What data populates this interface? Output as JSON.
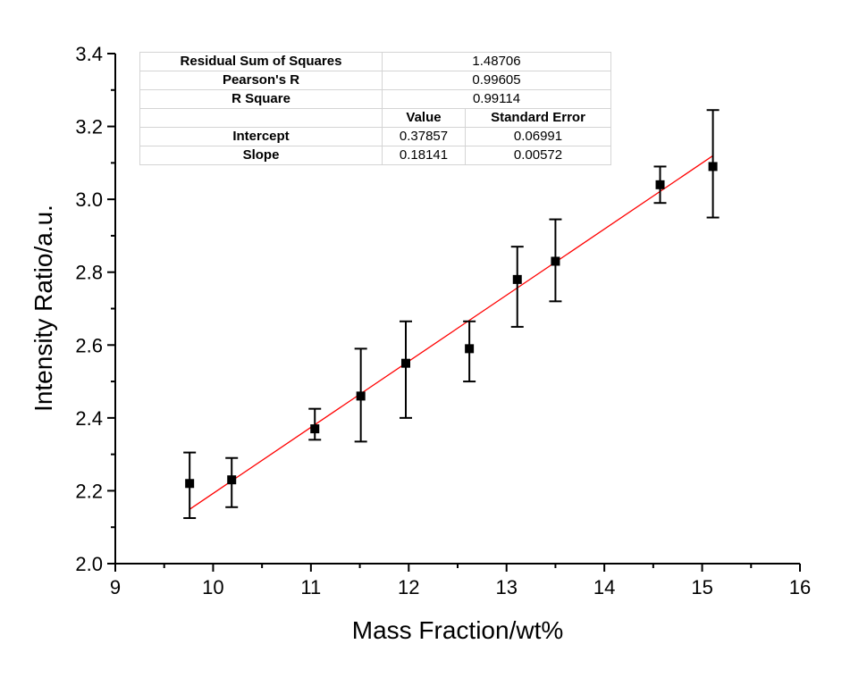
{
  "chart_data": {
    "type": "scatter",
    "title": "",
    "xlabel": "Mass Fraction/wt%",
    "ylabel": "Intensity Ratio/a.u.",
    "xlim": [
      9,
      16
    ],
    "ylim": [
      2.0,
      3.4
    ],
    "xticks": [
      "9",
      "10",
      "11",
      "12",
      "13",
      "14",
      "15",
      "16"
    ],
    "yticks": [
      "2.0",
      "2.2",
      "2.4",
      "2.6",
      "2.8",
      "3.0",
      "3.2",
      "3.4"
    ],
    "colors": {
      "points": "#000000",
      "fit_line": "#ff0000",
      "axis": "#000000"
    },
    "series": [
      {
        "name": "data",
        "x": [
          9.76,
          10.19,
          11.04,
          11.51,
          11.97,
          12.62,
          13.11,
          13.5,
          14.57,
          15.11
        ],
        "y": [
          2.22,
          2.23,
          2.37,
          2.46,
          2.55,
          2.59,
          2.78,
          2.83,
          3.04,
          3.09
        ],
        "err_low": [
          2.125,
          2.155,
          2.34,
          2.335,
          2.4,
          2.5,
          2.65,
          2.72,
          2.99,
          2.95
        ],
        "err_high": [
          2.305,
          2.29,
          2.425,
          2.59,
          2.665,
          2.665,
          2.87,
          2.945,
          3.09,
          3.245
        ]
      }
    ],
    "fit": {
      "intercept": 0.37857,
      "slope": 0.18141,
      "x_range": [
        9.76,
        15.11
      ]
    },
    "stats_table": {
      "rows": [
        {
          "label": "Residual Sum of Squares",
          "value": "1.48706"
        },
        {
          "label": "Pearson's R",
          "value": "0.99605"
        },
        {
          "label": "R Square",
          "value": "0.99114"
        }
      ],
      "header": {
        "blank": "",
        "value": "Value",
        "stderr": "Standard Error"
      },
      "params": [
        {
          "label": "Intercept",
          "value": "0.37857",
          "stderr": "0.06991"
        },
        {
          "label": "Slope",
          "value": "0.18141",
          "stderr": "0.00572"
        }
      ]
    }
  }
}
